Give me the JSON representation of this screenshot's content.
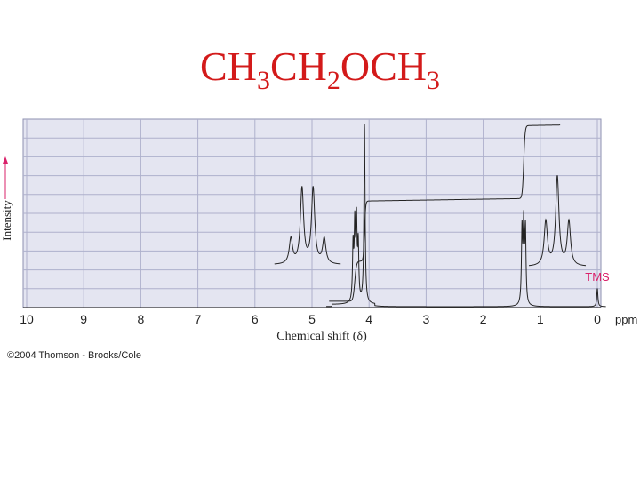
{
  "slide": {
    "formula_parts": [
      {
        "text": "CH",
        "sub": false
      },
      {
        "text": "3",
        "sub": true
      },
      {
        "text": "CH",
        "sub": false
      },
      {
        "text": "2",
        "sub": true
      },
      {
        "text": "OCH",
        "sub": false
      },
      {
        "text": "3",
        "sub": true
      }
    ],
    "title_color": "#d31a1a"
  },
  "copyright": "©2004 Thomson - Brooks/Cole",
  "chart_data": {
    "type": "line",
    "xlabel": "Chemical shift (δ)",
    "ylabel": "Intensity",
    "x_unit": "ppm",
    "xlim": [
      10,
      0
    ],
    "x_reversed": true,
    "x_ticks": [
      "10",
      "9",
      "8",
      "7",
      "6",
      "5",
      "4",
      "3",
      "2",
      "1",
      "0"
    ],
    "grid": true,
    "grid_color": "#aeb0cc",
    "plot_background": "#e4e5f1",
    "reference_label": "TMS",
    "reference_color": "#d9216a",
    "series": [
      {
        "kind": "spectrum",
        "peaks": [
          {
            "shift": 4.28,
            "height": 0.3
          },
          {
            "shift": 4.25,
            "height": 0.4
          },
          {
            "shift": 4.22,
            "height": 0.42
          },
          {
            "shift": 4.19,
            "height": 0.3
          },
          {
            "shift": 4.08,
            "height": 0.98
          },
          {
            "shift": 1.32,
            "height": 0.4
          },
          {
            "shift": 1.29,
            "height": 0.42
          },
          {
            "shift": 1.26,
            "height": 0.4
          },
          {
            "shift": 0.0,
            "height": 0.1
          }
        ]
      },
      {
        "kind": "integration",
        "steps": [
          {
            "at": 4.25,
            "from": 0.03,
            "to": 0.25
          },
          {
            "at": 4.08,
            "to": 0.58
          },
          {
            "at": 1.29,
            "to": 0.98
          }
        ],
        "start": 4.7,
        "end": 0.65
      }
    ],
    "insets": [
      {
        "name": "quartet-inset",
        "ratios": [
          1,
          3,
          3,
          1
        ]
      },
      {
        "name": "triplet-inset",
        "ratios": [
          1,
          2,
          1
        ]
      }
    ]
  }
}
